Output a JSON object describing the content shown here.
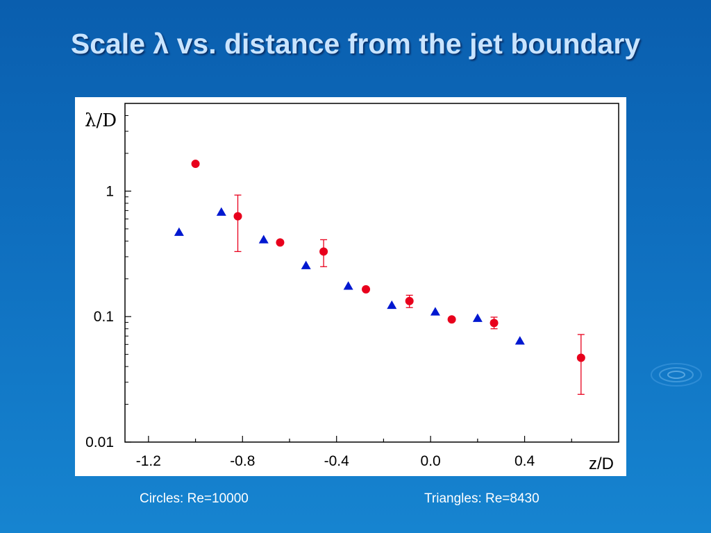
{
  "slide": {
    "title": "Scale λ vs. distance from the jet boundary",
    "legend_circles": "Circles: Re=10000",
    "legend_triangles": "Triangles: Re=8430"
  },
  "colors": {
    "background": "#0f6fbf",
    "title": "#c9e4ff",
    "circles": "#e8001c",
    "triangles": "#0018d0"
  },
  "chart_data": {
    "type": "scatter",
    "xlabel": "z/D",
    "ylabel": "λ/D",
    "xlim": [
      -1.3,
      0.8
    ],
    "ylim": [
      0.01,
      5
    ],
    "yscale": "log",
    "xticks": [
      "-1.2",
      "-0.8",
      "-0.4",
      "0.0",
      "0.4"
    ],
    "xtick_values": [
      -1.2,
      -0.8,
      -0.4,
      0.0,
      0.4
    ],
    "yticks": [
      "0.01",
      "0.1",
      "1"
    ],
    "ytick_values": [
      0.01,
      0.1,
      1
    ],
    "grid": false,
    "series": [
      {
        "name": "Circles: Re=10000",
        "marker": "circle",
        "color": "#e8001c",
        "points": [
          {
            "x": -1.0,
            "y": 1.65
          },
          {
            "x": -0.82,
            "y": 0.63,
            "ylow": 0.33,
            "yhigh": 0.93
          },
          {
            "x": -0.64,
            "y": 0.39
          },
          {
            "x": -0.455,
            "y": 0.33,
            "ylow": 0.25,
            "yhigh": 0.41
          },
          {
            "x": -0.275,
            "y": 0.165
          },
          {
            "x": -0.09,
            "y": 0.133,
            "ylow": 0.118,
            "yhigh": 0.148
          },
          {
            "x": 0.09,
            "y": 0.095
          },
          {
            "x": 0.27,
            "y": 0.089,
            "ylow": 0.08,
            "yhigh": 0.099
          },
          {
            "x": 0.64,
            "y": 0.047,
            "ylow": 0.024,
            "yhigh": 0.072
          }
        ]
      },
      {
        "name": "Triangles: Re=8430",
        "marker": "triangle",
        "color": "#0018d0",
        "points": [
          {
            "x": -1.07,
            "y": 0.47
          },
          {
            "x": -0.89,
            "y": 0.68
          },
          {
            "x": -0.71,
            "y": 0.41
          },
          {
            "x": -0.53,
            "y": 0.255
          },
          {
            "x": -0.35,
            "y": 0.175
          },
          {
            "x": -0.165,
            "y": 0.123
          },
          {
            "x": 0.02,
            "y": 0.109
          },
          {
            "x": 0.2,
            "y": 0.097
          },
          {
            "x": 0.38,
            "y": 0.064
          }
        ]
      }
    ]
  }
}
